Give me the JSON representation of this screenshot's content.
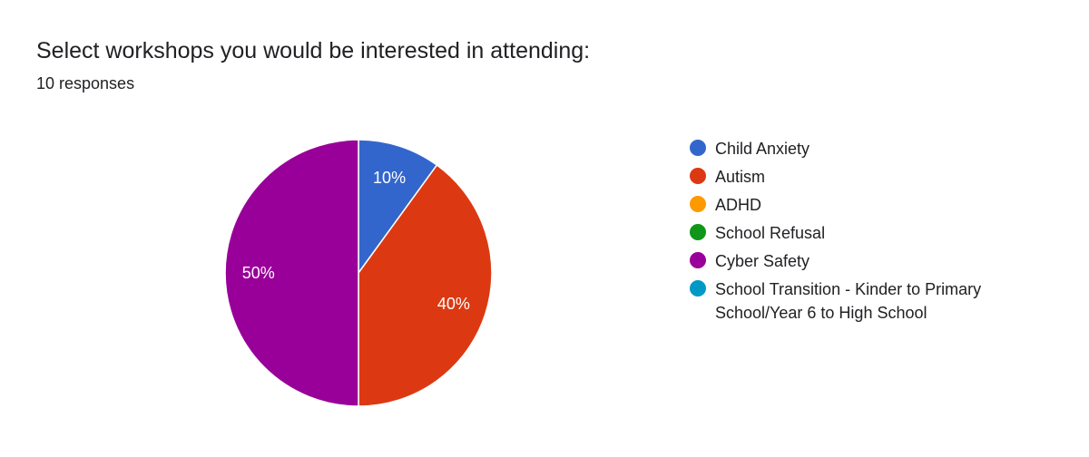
{
  "header": {
    "title": "Select workshops you would be interested in attending:",
    "responses": "10 responses"
  },
  "chart_data": {
    "type": "pie",
    "categories": [
      "Child Anxiety",
      "Autism",
      "ADHD",
      "School Refusal",
      "Cyber Safety",
      "School Transition - Kinder to Primary School/Year 6 to High School"
    ],
    "values": [
      10,
      40,
      0,
      0,
      50,
      0
    ],
    "data_labels": [
      "10%",
      "40%",
      "",
      "",
      "50%",
      ""
    ],
    "colors": [
      "#3366cc",
      "#dc3912",
      "#ff9900",
      "#109618",
      "#990099",
      "#0099c6"
    ],
    "legend_position": "right"
  }
}
